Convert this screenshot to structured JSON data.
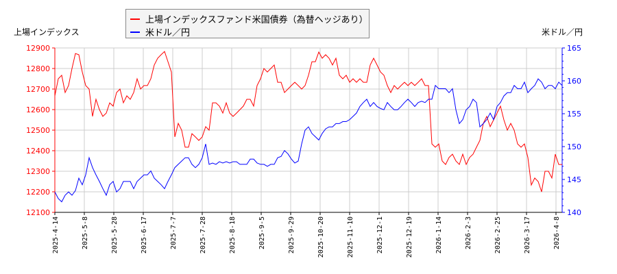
{
  "chart_data": {
    "type": "line",
    "left_axis_title": "上場インデックス",
    "right_axis_title": "米ドル／円",
    "x_tick_labels": [
      "2025-4-14",
      "2025-5-8",
      "2025-5-28",
      "2025-6-17",
      "2025-7-7",
      "2025-7-28",
      "2025-8-18",
      "2025-9-5",
      "2025-9-29",
      "2025-10-20",
      "2025-11-10",
      "2025-12-1",
      "2025-12-19",
      "2026-1-14",
      "2026-2-3",
      "2026-2-25",
      "2026-3-17",
      "2026-4-8"
    ],
    "left_ylim": [
      12100,
      12900
    ],
    "left_yticks": [
      12100,
      12200,
      12300,
      12400,
      12500,
      12600,
      12700,
      12800,
      12900
    ],
    "right_ylim": [
      140,
      165
    ],
    "right_yticks": [
      140,
      145,
      150,
      155,
      160,
      165
    ],
    "grid": true,
    "legend_placement": "top",
    "series": [
      {
        "name": "上場インデックスファンド米国債券（為替ヘッジあり）",
        "axis": "left",
        "color": "#ff0000",
        "values": [
          12667,
          12750,
          12767,
          12683,
          12717,
          12800,
          12873,
          12867,
          12783,
          12717,
          12700,
          12567,
          12650,
          12600,
          12567,
          12583,
          12633,
          12617,
          12683,
          12700,
          12633,
          12667,
          12650,
          12683,
          12750,
          12700,
          12717,
          12717,
          12750,
          12817,
          12850,
          12867,
          12883,
          12833,
          12783,
          12467,
          12533,
          12500,
          12417,
          12417,
          12483,
          12467,
          12450,
          12467,
          12517,
          12500,
          12633,
          12633,
          12617,
          12583,
          12633,
          12583,
          12567,
          12583,
          12600,
          12617,
          12650,
          12650,
          12617,
          12717,
          12750,
          12800,
          12783,
          12800,
          12817,
          12733,
          12733,
          12683,
          12700,
          12717,
          12733,
          12717,
          12700,
          12717,
          12767,
          12833,
          12833,
          12880,
          12850,
          12867,
          12850,
          12817,
          12850,
          12767,
          12750,
          12767,
          12733,
          12750,
          12733,
          12750,
          12733,
          12733,
          12817,
          12850,
          12817,
          12783,
          12767,
          12717,
          12683,
          12717,
          12700,
          12717,
          12733,
          12717,
          12733,
          12717,
          12733,
          12750,
          12717,
          12717,
          12433,
          12417,
          12433,
          12350,
          12333,
          12367,
          12383,
          12350,
          12333,
          12383,
          12333,
          12367,
          12383,
          12417,
          12450,
          12533,
          12567,
          12517,
          12550,
          12583,
          12617,
          12550,
          12500,
          12533,
          12500,
          12433,
          12417,
          12433,
          12367,
          12233,
          12267,
          12250,
          12200,
          12300,
          12300,
          12267,
          12383,
          12333,
          12333
        ]
      },
      {
        "name": "米ドル／円",
        "axis": "right",
        "color": "#0000ff",
        "values": [
          143.1,
          142.1,
          141.6,
          142.6,
          143.1,
          142.6,
          143.3,
          145.2,
          144.2,
          145.7,
          148.3,
          146.8,
          145.7,
          144.7,
          143.6,
          142.6,
          144.2,
          144.7,
          143.1,
          143.6,
          144.7,
          144.7,
          144.7,
          143.6,
          144.7,
          145.2,
          145.7,
          145.7,
          146.3,
          145.2,
          144.7,
          144.2,
          143.6,
          144.7,
          145.7,
          146.8,
          147.3,
          147.8,
          148.3,
          148.3,
          147.3,
          146.8,
          147.3,
          148.3,
          150.4,
          147.3,
          147.5,
          147.3,
          147.7,
          147.5,
          147.7,
          147.5,
          147.7,
          147.7,
          147.3,
          147.3,
          147.3,
          148.1,
          148.1,
          147.5,
          147.3,
          147.3,
          147.0,
          147.3,
          147.3,
          148.3,
          148.5,
          149.4,
          148.9,
          148.1,
          147.5,
          147.8,
          150.4,
          152.5,
          153.0,
          152.0,
          151.5,
          151.0,
          152.0,
          152.7,
          153.0,
          153.0,
          153.5,
          153.5,
          153.8,
          153.8,
          154.1,
          154.6,
          155.1,
          156.1,
          156.7,
          157.2,
          156.1,
          156.7,
          156.1,
          155.8,
          155.6,
          156.7,
          156.1,
          155.6,
          155.6,
          156.1,
          156.7,
          157.2,
          156.7,
          156.1,
          156.7,
          156.9,
          156.7,
          157.2,
          157.2,
          159.3,
          158.8,
          158.8,
          158.8,
          158.2,
          158.8,
          155.6,
          153.5,
          154.1,
          155.6,
          156.1,
          157.2,
          156.7,
          153.0,
          153.5,
          154.1,
          155.1,
          154.1,
          156.1,
          156.7,
          157.7,
          158.2,
          158.2,
          159.3,
          158.8,
          158.8,
          159.8,
          158.2,
          158.8,
          159.3,
          160.3,
          159.8,
          158.8,
          159.3,
          159.3,
          158.8,
          159.8,
          159.3
        ]
      }
    ]
  }
}
